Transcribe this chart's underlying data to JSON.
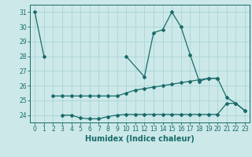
{
  "xlabel": "Humidex (Indice chaleur)",
  "bg_color": "#cce8e8",
  "grid_color": "#aad4d4",
  "line_color": "#1a6b6b",
  "xlim": [
    -0.5,
    23.5
  ],
  "ylim": [
    23.5,
    31.5
  ],
  "yticks": [
    24,
    25,
    26,
    27,
    28,
    29,
    30,
    31
  ],
  "xticks": [
    0,
    1,
    2,
    3,
    4,
    5,
    6,
    7,
    8,
    9,
    10,
    11,
    12,
    13,
    14,
    15,
    16,
    17,
    18,
    19,
    20,
    21,
    22,
    23
  ],
  "line1_x": [
    0,
    1,
    10,
    12,
    13,
    14,
    15,
    16,
    17,
    18,
    19,
    20
  ],
  "line1_y": [
    31.0,
    28.0,
    28.0,
    26.6,
    29.6,
    29.8,
    31.0,
    30.0,
    28.1,
    26.3,
    26.5,
    26.5
  ],
  "line1_break": 1,
  "line2_x": [
    2,
    3,
    4,
    5,
    6,
    7,
    8,
    9,
    10,
    11,
    12,
    13,
    14,
    15,
    16,
    17,
    18,
    19,
    20,
    21,
    22,
    23
  ],
  "line2_y": [
    25.3,
    25.3,
    25.3,
    25.3,
    25.3,
    25.3,
    25.3,
    25.3,
    25.5,
    25.7,
    25.8,
    25.9,
    26.0,
    26.1,
    26.2,
    26.3,
    26.4,
    26.5,
    26.5,
    25.2,
    24.8,
    24.3
  ],
  "line3_x": [
    3,
    4,
    5,
    6,
    7,
    8,
    9,
    10,
    11,
    12,
    13,
    14,
    15,
    16,
    17,
    18,
    19,
    20,
    21,
    22,
    23
  ],
  "line3_y": [
    24.0,
    24.0,
    23.8,
    23.75,
    23.75,
    23.9,
    24.0,
    24.05,
    24.05,
    24.05,
    24.05,
    24.05,
    24.05,
    24.05,
    24.05,
    24.05,
    24.05,
    24.05,
    24.8,
    24.8,
    24.3
  ],
  "tick_fontsize": 5.5,
  "xlabel_fontsize": 7
}
